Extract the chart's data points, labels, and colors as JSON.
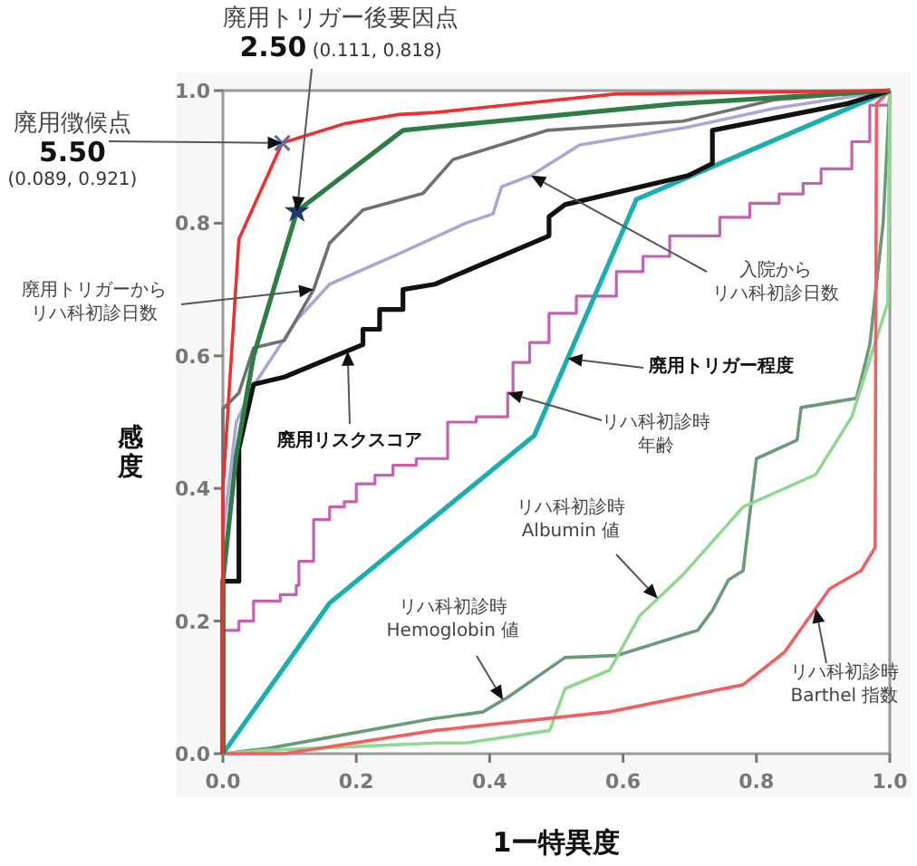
{
  "chart_data": {
    "type": "line",
    "xlabel": "1ー特異度",
    "ylabel": "感度",
    "xlim": [
      0,
      1
    ],
    "ylim": [
      0,
      1
    ],
    "xticks": [
      {
        "value": 0,
        "label": "0.0"
      },
      {
        "value": 0.2,
        "label": "0.2"
      },
      {
        "value": 0.4,
        "label": "0.4"
      },
      {
        "value": 0.6,
        "label": "0.6"
      },
      {
        "value": 0.8,
        "label": "0.8"
      },
      {
        "value": 1,
        "label": "1.0"
      }
    ],
    "yticks": [
      {
        "value": 0,
        "label": "0.0"
      },
      {
        "value": 0.2,
        "label": "0.2"
      },
      {
        "value": 0.4,
        "label": "0.4"
      },
      {
        "value": 0.6,
        "label": "0.6"
      },
      {
        "value": 0.8,
        "label": "0.8"
      },
      {
        "value": 1,
        "label": "1.0"
      }
    ],
    "grid": false,
    "series": [
      {
        "color": "#a8a8d8",
        "x": [
          0,
          0,
          0.02,
          0.046,
          0.11,
          0.16,
          0.264,
          0.364,
          0.405,
          0.418,
          0.462,
          0.535,
          0.698,
          0.826,
          1
        ],
        "values": [
          0,
          0.33,
          0.5,
          0.555,
          0.653,
          0.708,
          0.754,
          0.8,
          0.814,
          0.855,
          0.872,
          0.918,
          0.945,
          0.973,
          1
        ]
      },
      {
        "color": "#707070",
        "x": [
          0,
          0,
          0.024,
          0.046,
          0.092,
          0.136,
          0.16,
          0.21,
          0.3,
          0.345,
          0.486,
          0.69,
          0.826,
          1
        ],
        "values": [
          0,
          0.52,
          0.544,
          0.612,
          0.623,
          0.7,
          0.77,
          0.82,
          0.845,
          0.896,
          0.94,
          0.954,
          0.986,
          1
        ]
      },
      {
        "type": "step",
        "color": "#c860b0",
        "x": [
          0,
          0,
          0.024,
          0.046,
          0.086,
          0.11,
          0.114,
          0.136,
          0.16,
          0.182,
          0.2,
          0.228,
          0.255,
          0.29,
          0.337,
          0.38,
          0.427,
          0.435,
          0.46,
          0.489,
          0.53,
          0.59,
          0.63,
          0.67,
          0.745,
          0.79,
          0.834,
          0.87,
          0.897,
          0.943,
          0.97,
          1
        ],
        "values": [
          0,
          0.186,
          0.2,
          0.23,
          0.24,
          0.254,
          0.29,
          0.353,
          0.372,
          0.38,
          0.407,
          0.42,
          0.435,
          0.445,
          0.5,
          0.508,
          0.544,
          0.59,
          0.62,
          0.664,
          0.69,
          0.727,
          0.75,
          0.781,
          0.809,
          0.83,
          0.844,
          0.86,
          0.882,
          0.923,
          0.978,
          1
        ]
      },
      {
        "color": "#6a9a7a",
        "x": [
          0,
          0.068,
          0.31,
          0.39,
          0.427,
          0.513,
          0.59,
          0.712,
          0.734,
          0.758,
          0.78,
          0.8,
          0.861,
          0.867,
          0.95,
          0.97,
          0.99,
          1
        ],
        "values": [
          0,
          0.008,
          0.052,
          0.063,
          0.085,
          0.145,
          0.148,
          0.186,
          0.216,
          0.262,
          0.276,
          0.445,
          0.473,
          0.522,
          0.536,
          0.617,
          0.8,
          1
        ]
      },
      {
        "color": "#90d890",
        "x": [
          0,
          0.065,
          0.318,
          0.364,
          0.49,
          0.513,
          0.58,
          0.625,
          0.69,
          0.78,
          0.889,
          0.943,
          0.997,
          1
        ],
        "values": [
          0,
          0.005,
          0.016,
          0.016,
          0.035,
          0.098,
          0.126,
          0.208,
          0.27,
          0.372,
          0.421,
          0.508,
          0.68,
          1
        ]
      },
      {
        "color": "#f06060",
        "x": [
          0,
          0.092,
          0.318,
          0.58,
          0.78,
          0.842,
          0.91,
          0.957,
          0.978,
          0.98,
          1
        ],
        "values": [
          0,
          0,
          0.035,
          0.063,
          0.104,
          0.153,
          0.249,
          0.276,
          0.311,
          0.98,
          1
        ]
      },
      {
        "color": "#1aafaf",
        "x": [
          0,
          0.16,
          0.467,
          0.62,
          1
        ],
        "values": [
          0,
          0.227,
          0.48,
          0.836,
          1
        ]
      },
      {
        "color": "#111111",
        "x": [
          0,
          0,
          0.024,
          0.024,
          0.046,
          0.092,
          0.21,
          0.21,
          0.235,
          0.235,
          0.27,
          0.27,
          0.318,
          0.489,
          0.489,
          0.513,
          0.698,
          0.734,
          0.734,
          0.935,
          1
        ],
        "values": [
          0,
          0.26,
          0.26,
          0.46,
          0.557,
          0.568,
          0.617,
          0.64,
          0.64,
          0.67,
          0.67,
          0.7,
          0.708,
          0.781,
          0.81,
          0.828,
          0.872,
          0.89,
          0.94,
          0.98,
          1
        ]
      },
      {
        "color": "#2e7d46",
        "x": [
          0,
          0,
          0.02,
          0.046,
          0.111,
          0.27,
          0.318,
          0.68,
          1
        ],
        "values": [
          0,
          0.26,
          0.45,
          0.6,
          0.818,
          0.94,
          0.945,
          0.98,
          1
        ]
      },
      {
        "color": "#f0302f",
        "x": [
          0,
          0,
          0.024,
          0.089,
          0.182,
          0.264,
          0.318,
          0.59,
          1
        ],
        "values": [
          0,
          0.4,
          0.776,
          0.921,
          0.95,
          0.964,
          0.967,
          0.995,
          1
        ]
      },
      {
        "type": "scatter",
        "marker": "cross",
        "color": "#5a6fa0",
        "x": [
          0.089
        ],
        "values": [
          0.921
        ]
      },
      {
        "type": "scatter",
        "marker": "star",
        "color": "#1f3a6a",
        "x": [
          0.111
        ],
        "values": [
          0.818
        ]
      }
    ],
    "annotations": [
      {
        "text": "廃用徴候点 5.50 (0.089, 0.921)",
        "x": 0.089,
        "y": 0.921
      },
      {
        "text": "廃用トリガー後要因点 2.50 (0.111, 0.818)",
        "x": 0.111,
        "y": 0.818
      },
      {
        "text": "廃用トリガーからリハ科初診日数",
        "x": 0.136,
        "y": 0.7
      },
      {
        "text": "入院からリハ科初診日数",
        "x": 0.462,
        "y": 0.872
      },
      {
        "text": "廃用リスクスコア",
        "x": 0.187,
        "y": 0.607
      },
      {
        "text": "廃用トリガー程度",
        "x": 0.517,
        "y": 0.596
      },
      {
        "text": "リハ科初診時年齢",
        "x": 0.427,
        "y": 0.544
      },
      {
        "text": "リハ科初診時 Albumin 値",
        "x": 0.652,
        "y": 0.234
      },
      {
        "text": "リハ科初診時 Hemoglobin 値",
        "x": 0.42,
        "y": 0.081
      },
      {
        "text": "リハ科初診時 Barthel 指数",
        "x": 0.889,
        "y": 0.219
      }
    ]
  }
}
